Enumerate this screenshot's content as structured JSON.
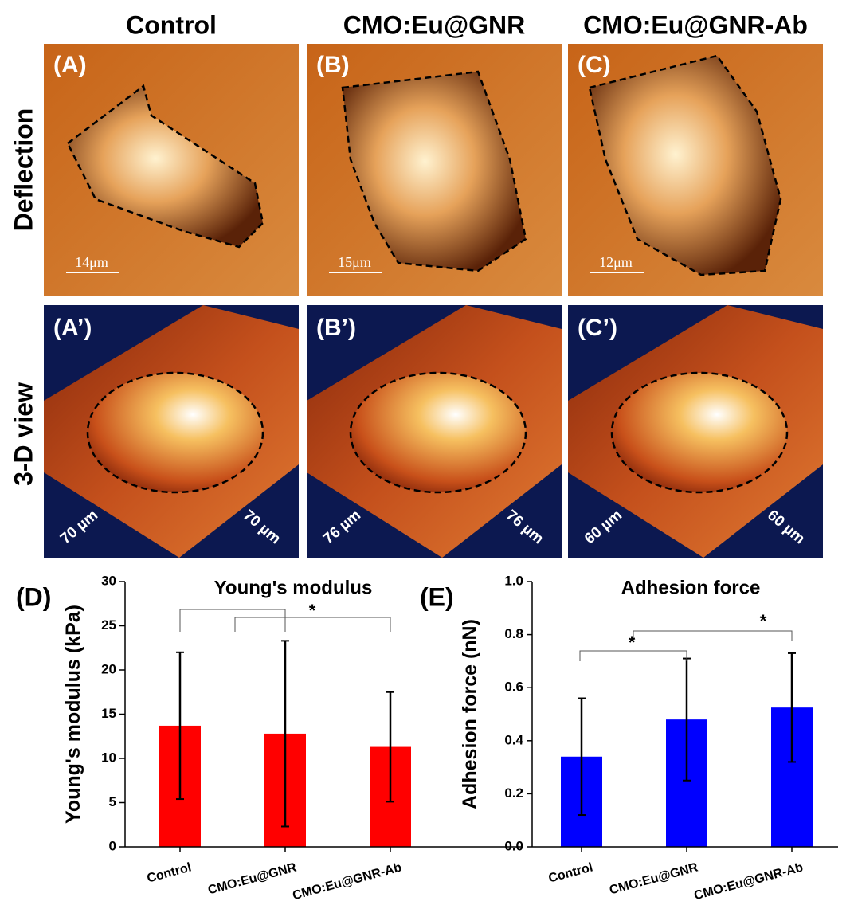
{
  "columns": [
    "Control",
    "CMO:Eu@GNR",
    "CMO:Eu@GNR-Ab"
  ],
  "rows": [
    "Deflection",
    "3-D view"
  ],
  "deflection_panels": [
    {
      "label": "(A)",
      "scale": "14μm"
    },
    {
      "label": "(B)",
      "scale": "15μm"
    },
    {
      "label": "(C)",
      "scale": "12μm"
    }
  ],
  "view_panels": [
    {
      "label": "(A’)",
      "size": "70 µm"
    },
    {
      "label": "(B’)",
      "size": "76 µm"
    },
    {
      "label": "(C’)",
      "size": "60 µm"
    }
  ],
  "chart_data": [
    {
      "type": "bar",
      "panel": "(D)",
      "title": "Young's modulus",
      "y_label": "Young's modulus (kPa)",
      "categories": [
        "Control",
        "CMO:Eu@GNR",
        "CMO:Eu@GNR-Ab"
      ],
      "values": [
        13.7,
        12.8,
        11.3
      ],
      "errors": [
        8.3,
        10.5,
        6.2
      ],
      "color": "#ff0000",
      "ylim": [
        0,
        30
      ],
      "yticks": [
        0,
        5,
        10,
        15,
        20,
        25,
        30
      ],
      "annotations": [
        "*"
      ]
    },
    {
      "type": "bar",
      "panel": "(E)",
      "title": "Adhesion force",
      "y_label": "Adhesion force (nN)",
      "categories": [
        "Control",
        "CMO:Eu@GNR",
        "CMO:Eu@GNR-Ab"
      ],
      "values": [
        0.34,
        0.48,
        0.525
      ],
      "errors": [
        0.22,
        0.23,
        0.205
      ],
      "color": "#0000ff",
      "ylim": [
        0,
        1.0
      ],
      "yticks": [
        {
          "value": 0,
          "label": "0.0"
        },
        {
          "value": 0.2,
          "label": "0.2"
        },
        {
          "value": 0.4,
          "label": "0.4"
        },
        {
          "value": 0.6,
          "label": "0.6"
        },
        {
          "value": 0.8,
          "label": "0.8"
        },
        {
          "value": 1.0,
          "label": "1.0"
        }
      ],
      "annotations": [
        "*",
        "*"
      ]
    }
  ]
}
